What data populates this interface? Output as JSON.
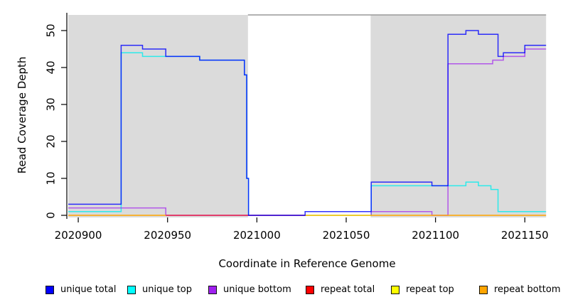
{
  "figure": {
    "xlabel": "Coordinate in Reference Genome",
    "ylabel": "Read Coverage Depth",
    "background_color": "#ffffff",
    "shaded_region_color": "#dbdbdb",
    "shaded_region_border_color": "#999999"
  },
  "chart_data": {
    "type": "line",
    "step": true,
    "title": "",
    "xlabel": "Coordinate in Reference Genome",
    "ylabel": "Read Coverage Depth",
    "xlim": [
      2020894.4,
      2021161.9
    ],
    "ylim": [
      0,
      54.4
    ],
    "grid": false,
    "legend_position": "bottom",
    "x_ticks": [
      2020900,
      2020950,
      2021000,
      2021050,
      2021100,
      2021150
    ],
    "x_tick_labels": [
      "2020900",
      "2020950",
      "2021000",
      "2021050",
      "2021100",
      "2021150"
    ],
    "y_ticks": [
      0,
      10,
      20,
      30,
      40,
      50
    ],
    "y_tick_labels": [
      "0",
      "10",
      "20",
      "30",
      "40",
      "50"
    ],
    "shaded_regions": [
      {
        "x0": 2020894.4,
        "x1": 2020995.0,
        "note": "unique region left"
      },
      {
        "x0": 2021063.7,
        "x1": 2021161.9,
        "note": "unique region right"
      }
    ],
    "series": [
      {
        "name": "unique total",
        "color": "#0000ff",
        "z": 6,
        "opacity": 0.8,
        "segments": [
          [
            [
              2020894.4,
              3
            ],
            [
              2020924,
              3
            ],
            [
              2020924,
              46
            ],
            [
              2020936,
              46
            ],
            [
              2020936,
              45
            ],
            [
              2020949,
              45
            ],
            [
              2020949,
              43
            ],
            [
              2020968,
              43
            ],
            [
              2020968,
              42
            ],
            [
              2020993,
              42
            ],
            [
              2020993,
              38
            ],
            [
              2020994.3,
              38
            ],
            [
              2020994.3,
              10
            ],
            [
              2020995.3,
              10
            ],
            [
              2020995.3,
              0
            ],
            [
              2021027,
              0
            ],
            [
              2021027,
              1
            ],
            [
              2021064,
              1
            ],
            [
              2021064,
              9
            ],
            [
              2021098,
              9
            ],
            [
              2021098,
              8
            ],
            [
              2021107,
              8
            ],
            [
              2021107,
              49
            ],
            [
              2021117,
              49
            ],
            [
              2021117,
              50
            ],
            [
              2021124,
              50
            ],
            [
              2021124,
              49
            ],
            [
              2021135,
              49
            ],
            [
              2021135,
              43
            ],
            [
              2021138,
              43
            ],
            [
              2021138,
              44
            ],
            [
              2021150,
              44
            ],
            [
              2021150,
              46
            ],
            [
              2021161.9,
              46
            ]
          ]
        ]
      },
      {
        "name": "unique top",
        "color": "#00eeee",
        "z": 1,
        "opacity": 0.8,
        "segments": [
          [
            [
              2020894.4,
              1
            ],
            [
              2020924,
              1
            ],
            [
              2020924,
              44
            ],
            [
              2020936,
              44
            ],
            [
              2020936,
              43
            ],
            [
              2020949,
              43
            ],
            [
              2020968,
              43
            ],
            [
              2020968,
              42
            ],
            [
              2020993,
              42
            ],
            [
              2020993,
              38
            ],
            [
              2020994.3,
              38
            ],
            [
              2020994.3,
              10
            ],
            [
              2020995.3,
              10
            ],
            [
              2020995.3,
              0
            ],
            [
              2021064,
              0
            ],
            [
              2021064,
              8
            ],
            [
              2021117,
              8
            ],
            [
              2021117,
              9
            ],
            [
              2021124,
              9
            ],
            [
              2021124,
              8
            ],
            [
              2021131,
              8
            ],
            [
              2021131,
              7
            ],
            [
              2021135,
              7
            ],
            [
              2021135,
              1
            ],
            [
              2021161.9,
              1
            ]
          ]
        ]
      },
      {
        "name": "unique bottom",
        "color": "#a020f0",
        "z": 2,
        "opacity": 0.7,
        "segments": [
          [
            [
              2020894.4,
              2
            ],
            [
              2020949,
              2
            ],
            [
              2020949,
              0
            ],
            [
              2021064,
              0
            ],
            [
              2021064,
              1
            ],
            [
              2021098,
              1
            ],
            [
              2021098,
              0
            ],
            [
              2021107,
              0
            ],
            [
              2021107,
              41
            ],
            [
              2021132,
              41
            ],
            [
              2021132,
              42
            ],
            [
              2021138,
              42
            ],
            [
              2021138,
              43
            ],
            [
              2021150,
              43
            ],
            [
              2021150,
              45
            ],
            [
              2021161.9,
              45
            ]
          ]
        ]
      },
      {
        "name": "repeat total",
        "color": "#ff0000",
        "z": 3,
        "opacity": 0.7,
        "segments": [
          [
            [
              2020949,
              0
            ],
            [
              2021064,
              0
            ]
          ]
        ]
      },
      {
        "name": "repeat top",
        "color": "#ffff00",
        "z": 4,
        "opacity": 0.9,
        "segments": [
          [
            [
              2021027,
              0
            ],
            [
              2021064,
              0
            ]
          ]
        ]
      },
      {
        "name": "repeat bottom",
        "color": "#ffa500",
        "z": 5,
        "opacity": 1,
        "segments": [
          [
            [
              2020894.4,
              0
            ],
            [
              2020949,
              0
            ]
          ],
          [
            [
              2021064,
              0
            ],
            [
              2021161.9,
              0
            ]
          ]
        ]
      }
    ]
  },
  "legend": {
    "items": [
      {
        "label": "unique total",
        "color": "#0000ff"
      },
      {
        "label": "unique top",
        "color": "#00ffff"
      },
      {
        "label": "unique bottom",
        "color": "#a020f0"
      },
      {
        "label": "repeat total",
        "color": "#ff0000"
      },
      {
        "label": "repeat top",
        "color": "#ffff00"
      },
      {
        "label": "repeat bottom",
        "color": "#ffa500"
      }
    ]
  }
}
